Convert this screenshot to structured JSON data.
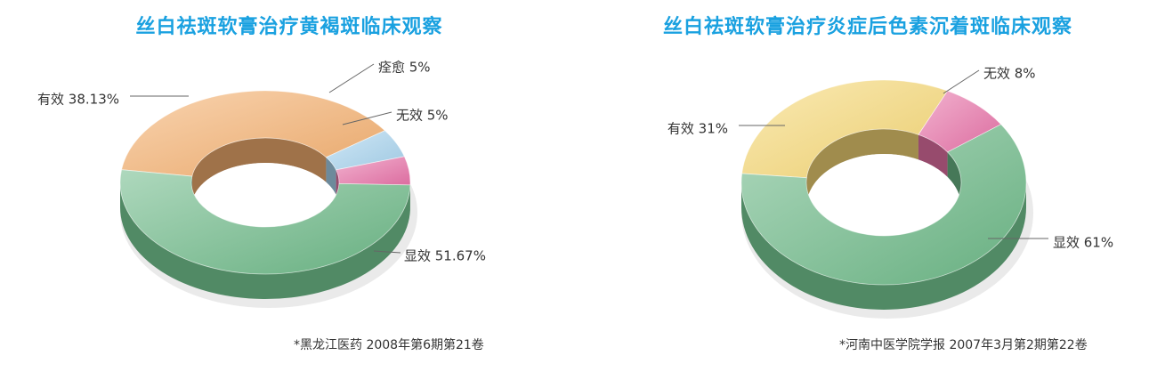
{
  "chart_data": [
    {
      "type": "pie",
      "title": "丝白祛斑软膏治疗黄褐斑临床观察",
      "source": "*黑龙江医药 2008年第6期第21卷",
      "slices": [
        {
          "name": "有效",
          "value": 38.13,
          "label": "有效 38.13%"
        },
        {
          "name": "痊愈",
          "value": 5,
          "label": "痊愈 5%"
        },
        {
          "name": "无效",
          "value": 5,
          "label": "无效 5%"
        },
        {
          "name": "显效",
          "value": 51.67,
          "label": "显效 51.67%"
        }
      ],
      "colors": [
        "#f4b070",
        "#a8d4ee",
        "#e873a8",
        "#6cb887"
      ]
    },
    {
      "type": "pie",
      "title": "丝白祛斑软膏治疗炎症后色素沉着斑临床观察",
      "source": "*河南中医学院学报 2007年3月第2期第22卷",
      "slices": [
        {
          "name": "有效",
          "value": 31,
          "label": "有效 31%"
        },
        {
          "name": "无效",
          "value": 8,
          "label": "无效 8%"
        },
        {
          "name": "显效",
          "value": 61,
          "label": "显效 61%"
        }
      ],
      "colors": [
        "#f6d876",
        "#e873a8",
        "#6cb887"
      ]
    }
  ]
}
